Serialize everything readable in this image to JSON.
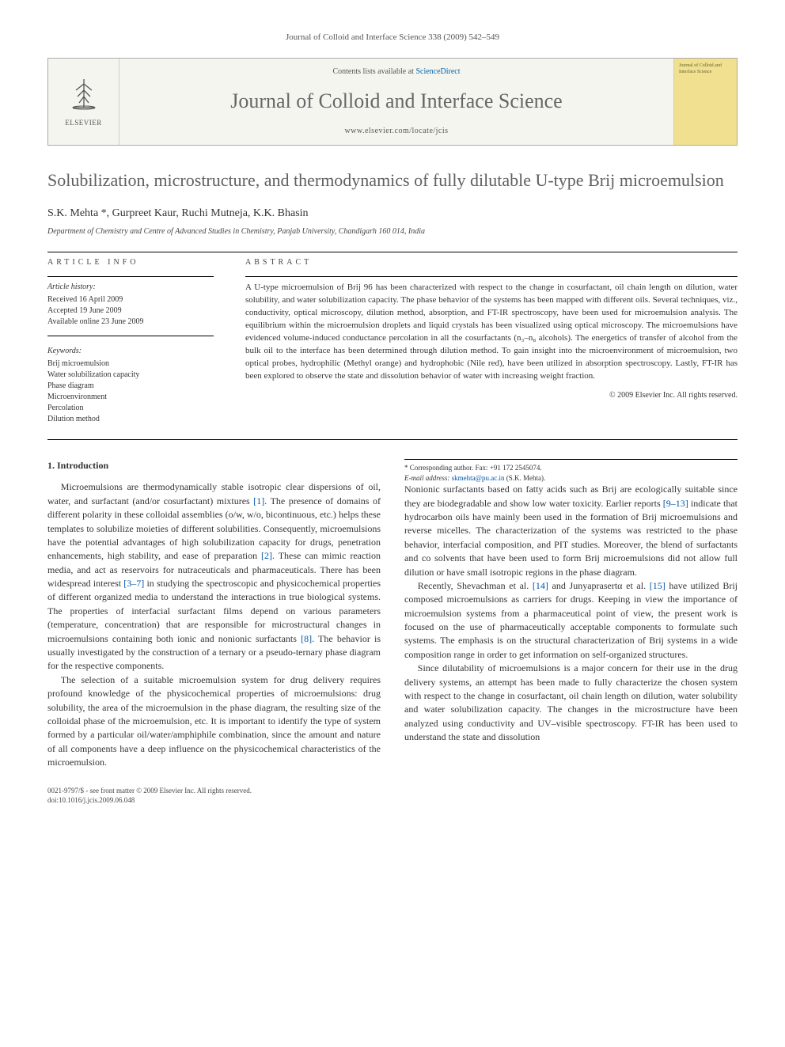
{
  "colors": {
    "link": "#0055aa",
    "text": "#333333",
    "heading_gray": "#606060",
    "masthead_bg": "#f5f5f0",
    "cover_bg": "#f0e090"
  },
  "typography": {
    "body_font": "Times New Roman",
    "title_size_pt": 22,
    "journal_name_size_pt": 26,
    "body_size_pt": 12
  },
  "header": {
    "citation": "Journal of Colloid and Interface Science 338 (2009) 542–549"
  },
  "masthead": {
    "publisher": "ELSEVIER",
    "contents_prefix": "Contents lists available at ",
    "contents_link": "ScienceDirect",
    "journal_name": "Journal of Colloid and Interface Science",
    "homepage": "www.elsevier.com/locate/jcis",
    "cover_text": "Journal of Colloid and Interface Science"
  },
  "article": {
    "title": "Solubilization, microstructure, and thermodynamics of fully dilutable U-type Brij microemulsion",
    "authors_html": "S.K. Mehta *, Gurpreet Kaur, Ruchi Mutneja, K.K. Bhasin",
    "affiliation": "Department of Chemistry and Centre of Advanced Studies in Chemistry, Panjab University, Chandigarh 160 014, India"
  },
  "article_info": {
    "heading": "ARTICLE INFO",
    "history_label": "Article history:",
    "received": "Received 16 April 2009",
    "accepted": "Accepted 19 June 2009",
    "online": "Available online 23 June 2009",
    "keywords_label": "Keywords:",
    "keywords": [
      "Brij microemulsion",
      "Water solubilization capacity",
      "Phase diagram",
      "Microenvironment",
      "Percolation",
      "Dilution method"
    ]
  },
  "abstract": {
    "heading": "ABSTRACT",
    "text": "A U-type microemulsion of Brij 96 has been characterized with respect to the change in cosurfactant, oil chain length on dilution, water solubility, and water solubilization capacity. The phase behavior of the systems has been mapped with different oils. Several techniques, viz., conductivity, optical microscopy, dilution method, absorption, and FT-IR spectroscopy, have been used for microemulsion analysis. The equilibrium within the microemulsion droplets and liquid crystals has been visualized using optical microscopy. The microemulsions have evidenced volume-induced conductance percolation in all the cosurfactants (n₃–n₈ alcohols). The energetics of transfer of alcohol from the bulk oil to the interface has been determined through dilution method. To gain insight into the microenvironment of microemulsion, two optical probes, hydrophilic (Methyl orange) and hydrophobic (Nile red), have been utilized in absorption spectroscopy. Lastly, FT-IR has been explored to observe the state and dissolution behavior of water with increasing weight fraction.",
    "copyright": "© 2009 Elsevier Inc. All rights reserved."
  },
  "body": {
    "section1_heading": "1. Introduction",
    "p1": "Microemulsions are thermodynamically stable isotropic clear dispersions of oil, water, and surfactant (and/or cosurfactant) mixtures [1]. The presence of domains of different polarity in these colloidal assemblies (o/w, w/o, bicontinuous, etc.) helps these templates to solubilize moieties of different solubilities. Consequently, microemulsions have the potential advantages of high solubilization capacity for drugs, penetration enhancements, high stability, and ease of preparation [2]. These can mimic reaction media, and act as reservoirs for nutraceuticals and pharmaceuticals. There has been widespread interest [3–7] in studying the spectroscopic and physicochemical properties of different organized media to understand the interactions in true biological systems. The properties of interfacial surfactant films depend on various parameters (temperature, concentration) that are responsible for microstructural changes in microemulsions containing both ionic and nonionic surfactants [8]. The behavior is usually investigated by the construction of a ternary or a pseudo-ternary phase diagram for the respective components.",
    "p2": "The selection of a suitable microemulsion system for drug delivery requires profound knowledge of the physicochemical properties of microemulsions: drug solubility, the area of the microemulsion in the phase diagram, the resulting size of the colloidal phase of the microemulsion, etc. It is important to identify the type of system formed by a particular oil/water/amphiphile combination, since the amount and nature of all components have a deep influence on the physicochemical characteristics of the microemulsion.",
    "p3": "Nonionic surfactants based on fatty acids such as Brij are ecologically suitable since they are biodegradable and show low water toxicity. Earlier reports [9–13] indicate that hydrocarbon oils have mainly been used in the formation of Brij microemulsions and reverse micelles. The characterization of the systems was restricted to the phase behavior, interfacial composition, and PIT studies. Moreover, the blend of surfactants and co solvents that have been used to form Brij microemulsions did not allow full dilution or have small isotropic regions in the phase diagram.",
    "p4": "Recently, Shevachman et al. [14] and Junyaprasertα et al. [15] have utilized Brij composed microemulsions as carriers for drugs. Keeping in view the importance of microemulsion systems from a pharmaceutical point of view, the present work is focused on the use of pharmaceutically acceptable components to formulate such systems. The emphasis is on the structural characterization of Brij systems in a wide composition range in order to get information on self-organized structures.",
    "p5": "Since dilutability of microemulsions is a major concern for their use in the drug delivery systems, an attempt has been made to fully characterize the chosen system with respect to the change in cosurfactant, oil chain length on dilution, water solubility and water solubilization capacity. The changes in the microstructure have been analyzed using conductivity and UV–visible spectroscopy. FT-IR has been used to understand the state and dissolution"
  },
  "footnotes": {
    "corresponding": "* Corresponding author. Fax: +91 172 2545074.",
    "email_label": "E-mail address:",
    "email": "skmehta@pu.ac.in",
    "email_suffix": "(S.K. Mehta)."
  },
  "footer": {
    "line1": "0021-9797/$ - see front matter © 2009 Elsevier Inc. All rights reserved.",
    "line2": "doi:10.1016/j.jcis.2009.06.048"
  }
}
